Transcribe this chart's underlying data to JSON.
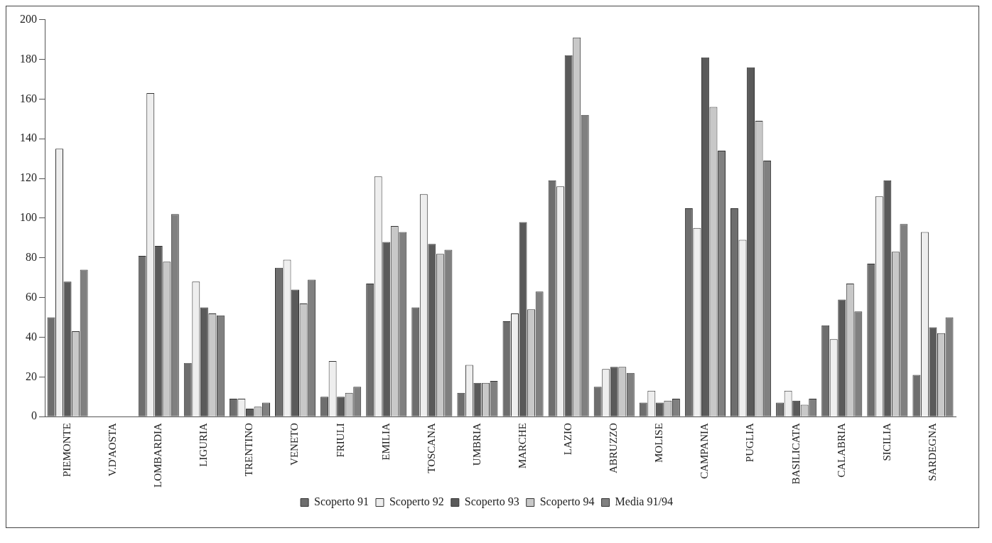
{
  "chart_data": {
    "type": "bar",
    "categories": [
      "PIEMONTE",
      "V.D'AOSTA",
      "LOMBARDIA",
      "LIGURIA",
      "TRENTINO",
      "VENETO",
      "FRIULI",
      "EMILIA",
      "TOSCANA",
      "UMBRIA",
      "MARCHE",
      "LAZIO",
      "ABRUZZO",
      "MOLISE",
      "CAMPANIA",
      "PUGLIA",
      "BASILICATA",
      "CALABRIA",
      "SICILIA",
      "SARDEGNA"
    ],
    "series": [
      {
        "name": "Scoperto 91",
        "color": "#6e6e6e",
        "values": [
          50,
          0,
          81,
          27,
          9,
          75,
          10,
          67,
          55,
          12,
          48,
          119,
          15,
          7,
          105,
          105,
          7,
          46,
          77,
          21
        ]
      },
      {
        "name": "Scoperto 92",
        "color": "#eeeeee",
        "values": [
          135,
          0,
          163,
          68,
          9,
          79,
          28,
          121,
          112,
          26,
          52,
          116,
          24,
          13,
          95,
          89,
          13,
          39,
          111,
          93
        ]
      },
      {
        "name": "Scoperto 93",
        "color": "#5a5a5a",
        "values": [
          68,
          0,
          86,
          55,
          4,
          64,
          10,
          88,
          87,
          17,
          98,
          182,
          25,
          7,
          181,
          176,
          8,
          59,
          119,
          45
        ]
      },
      {
        "name": "Scoperto 94",
        "color": "#c8c8c8",
        "values": [
          43,
          0,
          78,
          52,
          5,
          57,
          12,
          96,
          82,
          17,
          54,
          191,
          25,
          8,
          156,
          149,
          6,
          67,
          83,
          42
        ]
      },
      {
        "name": "Media 91/94",
        "color": "#808080",
        "values": [
          74,
          0,
          102,
          51,
          7,
          69,
          15,
          93,
          84,
          18,
          63,
          152,
          22,
          9,
          134,
          129,
          9,
          53,
          97,
          50
        ]
      }
    ],
    "ylim": [
      0,
      200
    ],
    "yticks": [
      0,
      20,
      40,
      60,
      80,
      100,
      120,
      140,
      160,
      180,
      200
    ],
    "grid": false,
    "legend": "bottom"
  }
}
